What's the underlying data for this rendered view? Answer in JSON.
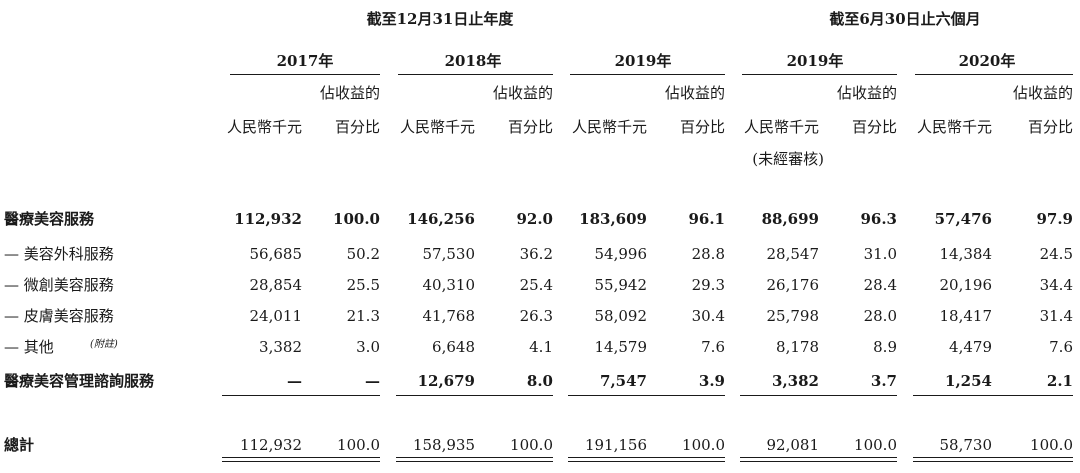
{
  "header": {
    "group_full_year": "截至12月31日止年度",
    "group_six_months": "截至6月30日止六個月",
    "years": [
      "2017年",
      "2018年",
      "2019年",
      "2019年",
      "2020年"
    ],
    "col_amount": "人民幣千元",
    "col_pct_line1": "佔收益的",
    "col_pct_line2": "百分比",
    "unaudited": "(未經審核)"
  },
  "rows": [
    {
      "label": "醫療美容服務",
      "bold": true,
      "values": [
        "112,932",
        "100.0",
        "146,256",
        "92.0",
        "183,609",
        "96.1",
        "88,699",
        "96.3",
        "57,476",
        "97.9"
      ]
    },
    {
      "label": "— 美容外科服務",
      "bold": false,
      "values": [
        "56,685",
        "50.2",
        "57,530",
        "36.2",
        "54,996",
        "28.8",
        "28,547",
        "31.0",
        "14,384",
        "24.5"
      ]
    },
    {
      "label": "— 微創美容服務",
      "bold": false,
      "values": [
        "28,854",
        "25.5",
        "40,310",
        "25.4",
        "55,942",
        "29.3",
        "26,176",
        "28.4",
        "20,196",
        "34.4"
      ]
    },
    {
      "label": "— 皮膚美容服務",
      "bold": false,
      "values": [
        "24,011",
        "21.3",
        "41,768",
        "26.3",
        "58,092",
        "30.4",
        "25,798",
        "28.0",
        "18,417",
        "31.4"
      ]
    },
    {
      "label": "— 其他",
      "note": "(附註)",
      "bold": false,
      "values": [
        "3,382",
        "3.0",
        "6,648",
        "4.1",
        "14,579",
        "7.6",
        "8,178",
        "8.9",
        "4,479",
        "7.6"
      ]
    },
    {
      "label": "醫療美容管理諮詢服務",
      "bold": true,
      "values": [
        "—",
        "—",
        "12,679",
        "8.0",
        "7,547",
        "3.9",
        "3,382",
        "3.7",
        "1,254",
        "2.1"
      ]
    }
  ],
  "total": {
    "label": "總計",
    "values": [
      "112,932",
      "100.0",
      "158,935",
      "100.0",
      "191,156",
      "100.0",
      "92,081",
      "100.0",
      "58,730",
      "100.0"
    ]
  }
}
